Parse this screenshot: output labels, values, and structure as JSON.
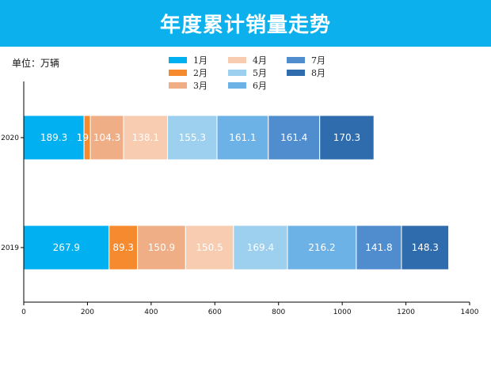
{
  "header": {
    "title": "年度累计销量走势"
  },
  "unit_label": "单位：万辆",
  "chart_data": {
    "type": "bar",
    "orientation": "horizontal",
    "stacked": true,
    "title": "年度累计销量走势",
    "categories": [
      "2020",
      "2019"
    ],
    "series": [
      {
        "name": "1月",
        "color": "#00b0f0",
        "values": [
          189.3,
          267.9
        ]
      },
      {
        "name": "2月",
        "color": "#f58a2e",
        "values": [
          19.8,
          89.3
        ]
      },
      {
        "name": "3月",
        "color": "#efae86",
        "values": [
          104.3,
          150.9
        ]
      },
      {
        "name": "4月",
        "color": "#f7ccb0",
        "values": [
          138.1,
          150.5
        ]
      },
      {
        "name": "5月",
        "color": "#9dcfee",
        "values": [
          155.3,
          169.4
        ]
      },
      {
        "name": "6月",
        "color": "#6cb2e6",
        "values": [
          161.1,
          216.2
        ]
      },
      {
        "name": "7月",
        "color": "#4f8dcf",
        "values": [
          161.4,
          141.8
        ]
      },
      {
        "name": "8月",
        "color": "#2e6cae",
        "values": [
          170.3,
          148.3
        ]
      }
    ],
    "xlim": [
      0,
      1400
    ],
    "xticks": [
      0,
      200,
      400,
      600,
      800,
      1000,
      1200,
      1400
    ],
    "xlabel": "",
    "ylabel": "单位：万辆",
    "grid": false,
    "legend_position": "top-center"
  }
}
